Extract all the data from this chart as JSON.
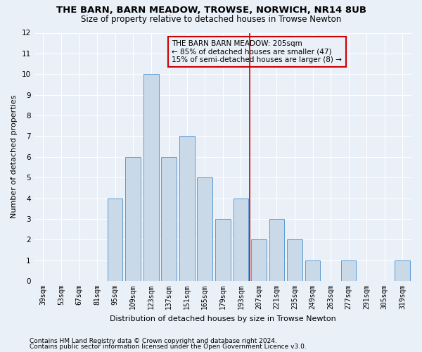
{
  "title": "THE BARN, BARN MEADOW, TROWSE, NORWICH, NR14 8UB",
  "subtitle": "Size of property relative to detached houses in Trowse Newton",
  "xlabel": "Distribution of detached houses by size in Trowse Newton",
  "ylabel": "Number of detached properties",
  "categories": [
    "39sqm",
    "53sqm",
    "67sqm",
    "81sqm",
    "95sqm",
    "109sqm",
    "123sqm",
    "137sqm",
    "151sqm",
    "165sqm",
    "179sqm",
    "193sqm",
    "207sqm",
    "221sqm",
    "235sqm",
    "249sqm",
    "263sqm",
    "277sqm",
    "291sqm",
    "305sqm",
    "319sqm"
  ],
  "values": [
    0,
    0,
    0,
    0,
    4,
    6,
    10,
    6,
    7,
    5,
    3,
    4,
    2,
    3,
    2,
    1,
    0,
    1,
    0,
    0,
    1
  ],
  "bar_color": "#c9d9e8",
  "bar_edge_color": "#5b9bd5",
  "marker_line_index": 12,
  "marker_label_line1": "THE BARN BARN MEADOW: 205sqm",
  "marker_label_line2": "← 85% of detached houses are smaller (47)",
  "marker_label_line3": "15% of semi-detached houses are larger (8) →",
  "ylim": [
    0,
    12
  ],
  "yticks": [
    0,
    1,
    2,
    3,
    4,
    5,
    6,
    7,
    8,
    9,
    10,
    11,
    12
  ],
  "footnote1": "Contains HM Land Registry data © Crown copyright and database right 2024.",
  "footnote2": "Contains public sector information licensed under the Open Government Licence v3.0.",
  "bg_color": "#eaf0f8",
  "grid_color": "#ffffff",
  "annotation_box_edge_color": "#cc0000",
  "title_fontsize": 9.5,
  "subtitle_fontsize": 8.5,
  "axis_label_fontsize": 8,
  "tick_fontsize": 7,
  "annotation_fontsize": 7.5,
  "footnote_fontsize": 6.5
}
